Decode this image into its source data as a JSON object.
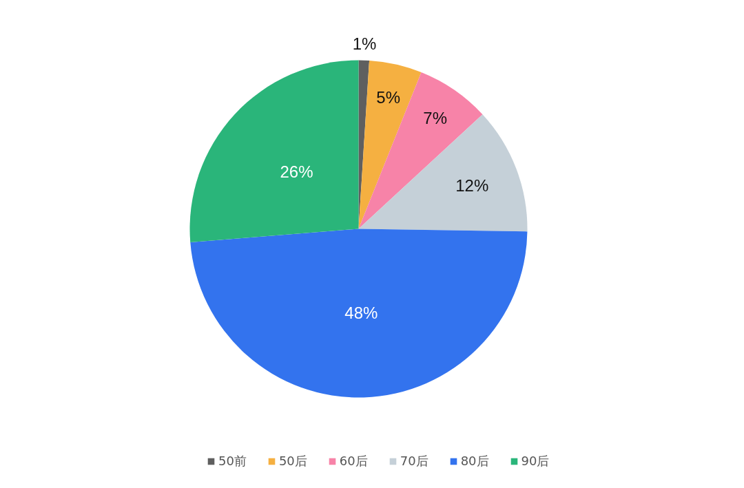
{
  "chart_data": {
    "type": "pie",
    "categories": [
      "50前",
      "50后",
      "60后",
      "70后",
      "80后",
      "90后"
    ],
    "values": [
      1,
      5,
      7,
      12,
      48,
      26
    ],
    "value_labels": [
      "1%",
      "5%",
      "7%",
      "12%",
      "48%",
      "26%"
    ],
    "colors": [
      "#5f5f5f",
      "#f5b041",
      "#f783a8",
      "#c5d0d8",
      "#3373ee",
      "#2ab57a"
    ],
    "legend": "bottom"
  }
}
